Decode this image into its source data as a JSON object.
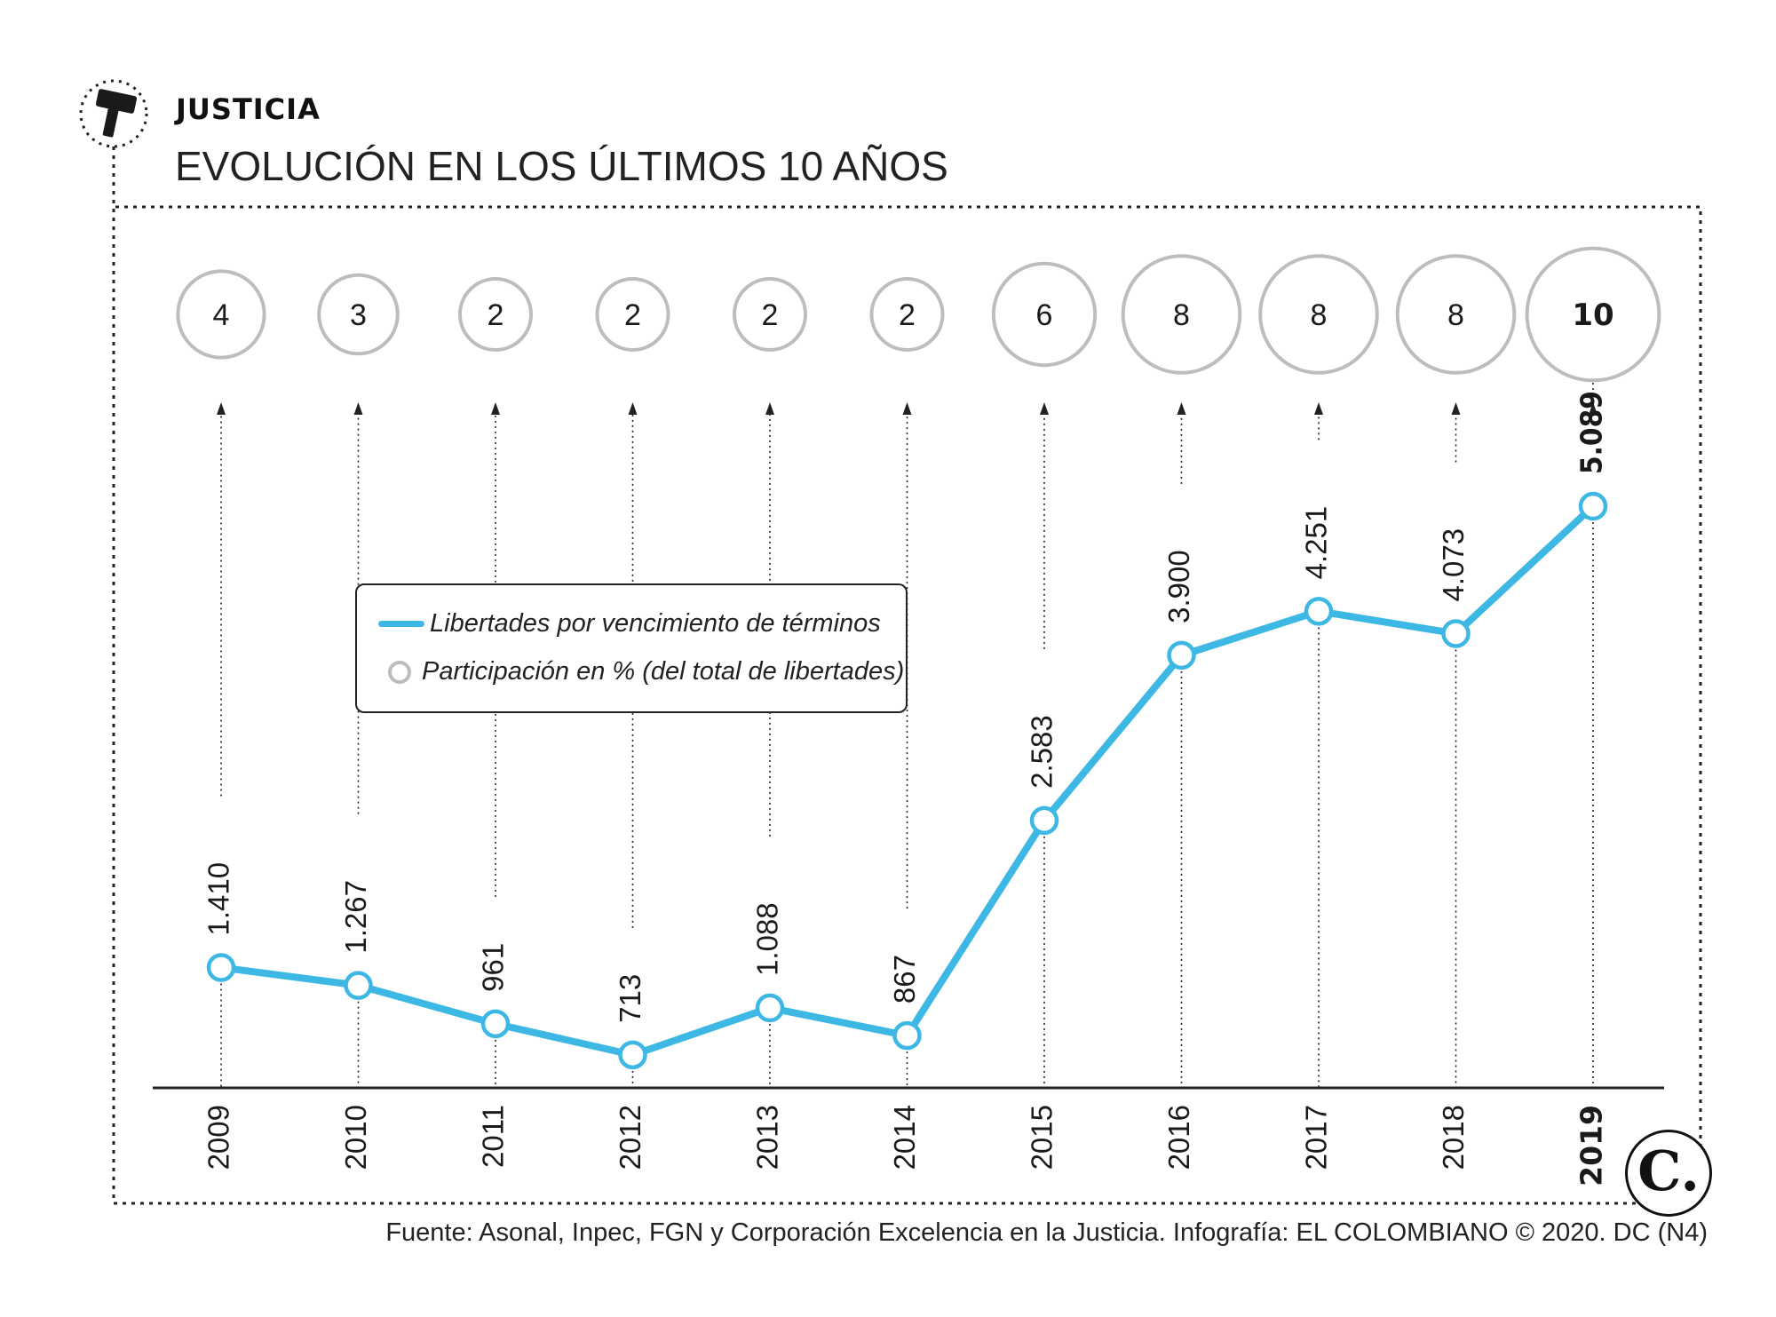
{
  "header": {
    "section": "JUSTICIA",
    "title": "EVOLUCIÓN EN LOS ÚLTIMOS 10 AÑOS"
  },
  "legend": {
    "line_label": "Libertades por vencimiento de términos",
    "circle_label": "Participación en % (del total de libertades)"
  },
  "footer": {
    "source": "Fuente: Asonal, Inpec, FGN y Corporación Excelencia en la Justicia. Infografía: EL COLOMBIANO © 2020. DC (N4)"
  },
  "logo": {
    "text": "C."
  },
  "colors": {
    "line": "#3db7e4",
    "circle_border": "#bdbdbd",
    "text": "#1a1a1a"
  },
  "icons": {
    "section_icon": "gavel-icon"
  },
  "chart_data": {
    "type": "line",
    "x": [
      "2009",
      "2010",
      "2011",
      "2012",
      "2013",
      "2014",
      "2015",
      "2016",
      "2017",
      "2018",
      "2019"
    ],
    "series": [
      {
        "name": "Libertades por vencimiento de términos",
        "values": [
          1410,
          1267,
          961,
          713,
          1088,
          867,
          2583,
          3900,
          4251,
          4073,
          5089
        ],
        "labels": [
          "1.410",
          "1.267",
          "961",
          "713",
          "1.088",
          "867",
          "2.583",
          "3.900",
          "4.251",
          "4.073",
          "5.089"
        ]
      },
      {
        "name": "Participación en % (del total de libertades)",
        "values": [
          4,
          3,
          2,
          2,
          2,
          2,
          6,
          8,
          8,
          8,
          10
        ],
        "labels": [
          "4",
          "3",
          "2",
          "2",
          "2",
          "2",
          "6",
          "8",
          "8",
          "8",
          "10"
        ]
      }
    ],
    "highlight": "2019",
    "ylim": [
      450,
      5500
    ],
    "grid": false,
    "legend_position": "center-left"
  }
}
